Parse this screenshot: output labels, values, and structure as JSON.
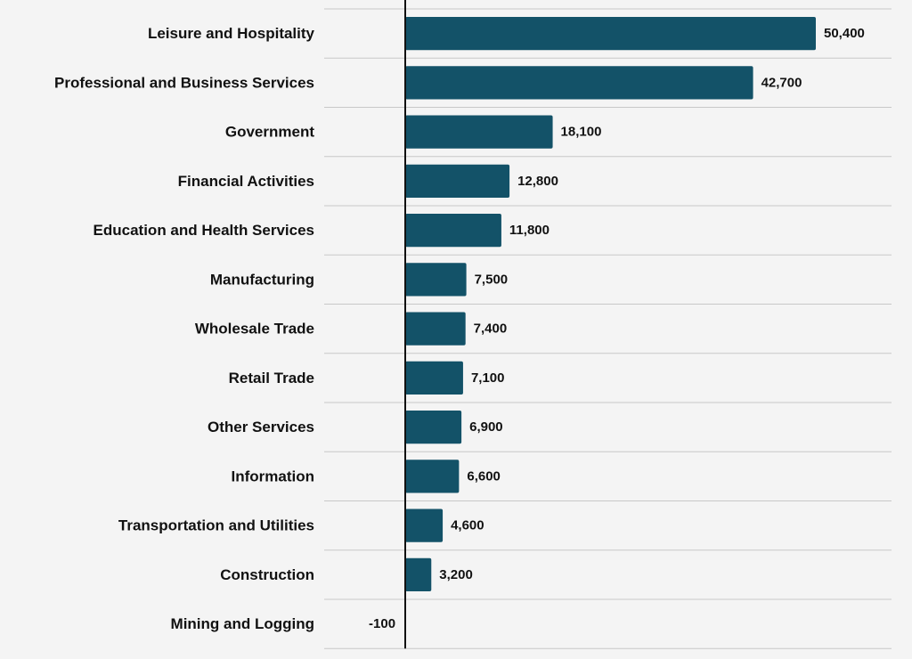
{
  "chart_data": {
    "type": "bar",
    "orientation": "horizontal",
    "title": "",
    "xlabel": "",
    "ylabel": "",
    "categories": [
      "Leisure and Hospitality",
      "Professional and Business Services",
      "Government",
      "Financial Activities",
      "Education and Health Services",
      "Manufacturing",
      "Wholesale Trade",
      "Retail Trade",
      "Other Services",
      "Information",
      "Transportation and Utilities",
      "Construction",
      "Mining and Logging"
    ],
    "values": [
      50400,
      42700,
      18100,
      12800,
      11800,
      7500,
      7400,
      7100,
      6900,
      6600,
      4600,
      3200,
      -100
    ],
    "value_labels": [
      "50,400",
      "42,700",
      "18,100",
      "12,800",
      "11,800",
      "7,500",
      "7,400",
      "7,100",
      "6,900",
      "6,600",
      "4,600",
      "3,200",
      "-100"
    ],
    "xlim": [
      -10000,
      60000
    ],
    "grid": "horizontal-separators",
    "legend": "none",
    "colors": {
      "bar": "#135268",
      "background": "#f4f4f4",
      "grid": "#c8c8c8",
      "axis": "#111111",
      "text": "#111111"
    }
  }
}
